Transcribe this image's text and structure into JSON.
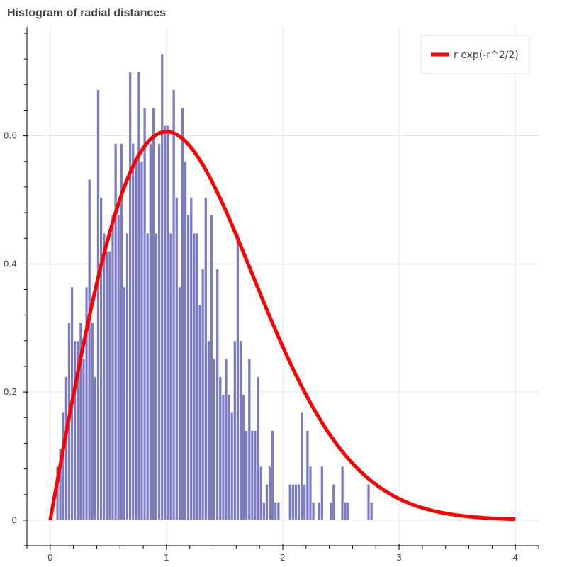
{
  "chart_data": {
    "type": "bar",
    "title": "Histogram of radial distances",
    "xlabel": "",
    "ylabel": "",
    "xlim": [
      -0.2,
      4.2
    ],
    "ylim": [
      -0.04,
      0.77
    ],
    "grid": true,
    "legend_position": "top-right",
    "bin_width": 0.025,
    "bin_start": 0.05,
    "x_ticks": [
      0,
      1,
      2,
      3,
      4
    ],
    "y_ticks": [
      0,
      0.2,
      0.4,
      0.6
    ],
    "x_tick_labels": [
      "0",
      "1",
      "2",
      "3",
      "4"
    ],
    "y_tick_labels": [
      "0",
      "0.2",
      "0.4",
      "0.6"
    ],
    "series": [
      {
        "kind": "histogram",
        "color": "#7b7bc4",
        "values": [
          0.084,
          0.112,
          0.168,
          0.224,
          0.308,
          0.364,
          0.28,
          0.28,
          0.308,
          0.252,
          0.364,
          0.532,
          0.308,
          0.224,
          0.672,
          0.504,
          0.448,
          0.42,
          0.42,
          0.476,
          0.588,
          0.476,
          0.588,
          0.364,
          0.448,
          0.7,
          0.588,
          0.56,
          0.7,
          0.56,
          0.644,
          0.448,
          0.588,
          0.644,
          0.448,
          0.588,
          0.728,
          0.616,
          0.616,
          0.448,
          0.672,
          0.504,
          0.364,
          0.644,
          0.56,
          0.476,
          0.504,
          0.448,
          0.448,
          0.336,
          0.392,
          0.504,
          0.28,
          0.476,
          0.252,
          0.392,
          0.224,
          0.196,
          0.252,
          0.196,
          0.168,
          0.28,
          0.448,
          0.28,
          0.196,
          0.14,
          0.252,
          0.14,
          0.14,
          0.224,
          0.084,
          0.028,
          0.056,
          0.084,
          0.14,
          0.028,
          0.028,
          0,
          0,
          0,
          0.056,
          0.056,
          0.056,
          0.056,
          0.168,
          0.056,
          0.14,
          0.084,
          0.028,
          0,
          0.028,
          0.084,
          0,
          0,
          0.028,
          0.056,
          0,
          0,
          0.084,
          0.028,
          0.028,
          0,
          0,
          0,
          0,
          0,
          0,
          0.056,
          0.028
        ]
      },
      {
        "kind": "line",
        "name": "r exp(-r^2/2)",
        "color": "#ff0000",
        "function": "r*exp(-r^2/2)",
        "x_range": [
          0,
          4
        ]
      }
    ]
  }
}
